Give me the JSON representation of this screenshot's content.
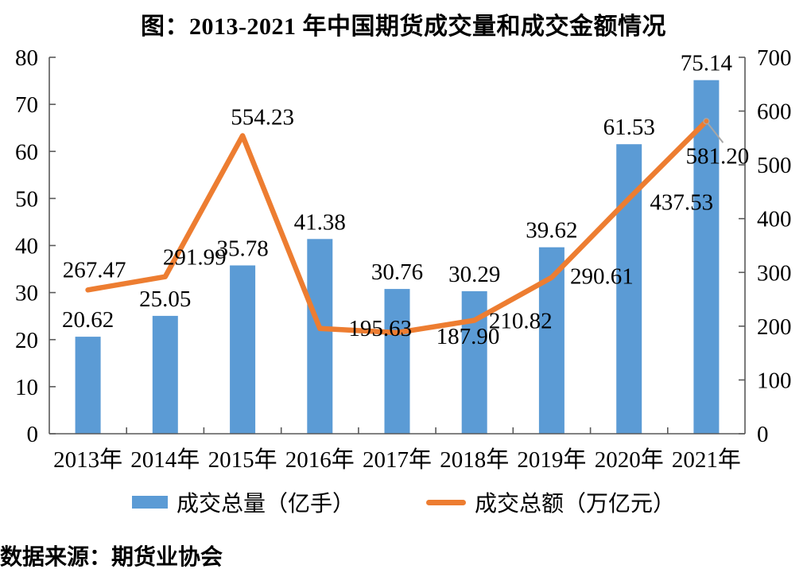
{
  "title": "图：2013-2021 年中国期货成交量和成交金额情况",
  "source": "数据来源：期货业协会",
  "colors": {
    "bar": "#5B9BD5",
    "line": "#ED7D31",
    "axis": "#595959",
    "label_text": "#000000",
    "leader": "#A6A6A6"
  },
  "chart_data": {
    "type": "bar",
    "subtype": "bar+line combo with dual y-axes, data labels on every point",
    "title": "图：2013-2021 年中国期货成交量和成交金额情况",
    "categories": [
      "2013年",
      "2014年",
      "2015年",
      "2016年",
      "2017年",
      "2018年",
      "2019年",
      "2020年",
      "2021年"
    ],
    "series": [
      {
        "name": "成交总量（亿手）",
        "type": "bar",
        "axis": "left",
        "color": "#5B9BD5",
        "values": [
          20.62,
          25.05,
          35.78,
          41.38,
          30.76,
          30.29,
          39.62,
          61.53,
          75.14
        ]
      },
      {
        "name": "成交总额（万亿元）",
        "type": "line",
        "axis": "right",
        "color": "#ED7D31",
        "values": [
          267.47,
          291.99,
          554.23,
          195.63,
          187.9,
          210.82,
          290.61,
          437.53,
          581.2
        ]
      }
    ],
    "left_axis": {
      "min": 0,
      "max": 80,
      "step": 10,
      "ticks": [
        "0",
        "10",
        "20",
        "30",
        "40",
        "50",
        "60",
        "70",
        "80"
      ]
    },
    "right_axis": {
      "min": 0,
      "max": 700,
      "step": 100,
      "ticks": [
        "0",
        "100",
        "200",
        "300",
        "400",
        "500",
        "600",
        "700"
      ]
    },
    "grid": false,
    "legend_position": "bottom",
    "callout": {
      "series_index": 1,
      "point_index": 8,
      "note": "581.20 label attached with gray leader line below the line end point"
    },
    "source_note": "数据来源：期货业协会"
  }
}
